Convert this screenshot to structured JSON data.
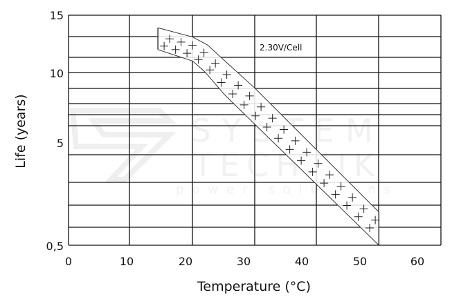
{
  "chart_data": {
    "type": "area",
    "title": "",
    "xlabel": "Temperature (°C)",
    "ylabel": "Life (years)",
    "xlim": [
      0,
      60
    ],
    "x_ticks": [
      "0",
      "10",
      "20",
      "30",
      "40",
      "50",
      "60"
    ],
    "y_ticks": [
      "15",
      "10",
      "5",
      "0,5"
    ],
    "y_tick_values": [
      15,
      10,
      5,
      0.5
    ],
    "grid": true,
    "annotation": "2.30V/Cell",
    "band": {
      "upper": [
        [
          14.4,
          13.9
        ],
        [
          20.0,
          13.1
        ],
        [
          22.4,
          12.4
        ],
        [
          24.6,
          11.3
        ],
        [
          30.0,
          8.9
        ],
        [
          50.0,
          1.96
        ]
      ],
      "lower": [
        [
          14.4,
          12.0
        ],
        [
          20.0,
          11.0
        ],
        [
          21.9,
          10.1
        ],
        [
          25.2,
          8.4
        ],
        [
          50.0,
          0.5
        ]
      ],
      "fill_pattern": "plus-markers"
    },
    "watermark": [
      "SYSTEM",
      "TECHNIK",
      "power solutions"
    ],
    "colors": {
      "line": "#111111",
      "grid": "#111111",
      "watermark": "#e6e6e6"
    }
  }
}
